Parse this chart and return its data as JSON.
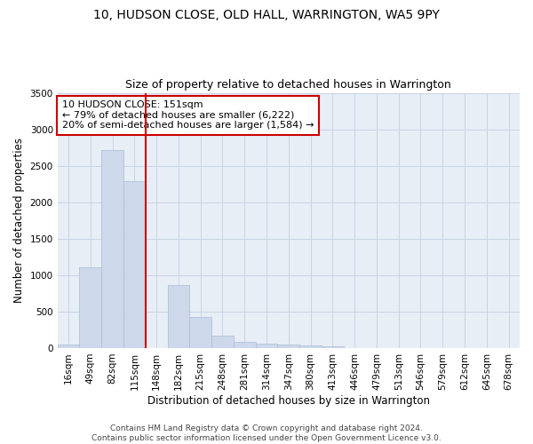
{
  "title_line1": "10, HUDSON CLOSE, OLD HALL, WARRINGTON, WA5 9PY",
  "title_line2": "Size of property relative to detached houses in Warrington",
  "xlabel": "Distribution of detached houses by size in Warrington",
  "ylabel": "Number of detached properties",
  "bar_color": "#cdd9ea",
  "bar_edge_color": "#a8bdd6",
  "grid_color": "#c8d4e4",
  "background_color": "#e8eef6",
  "categories": [
    "16sqm",
    "49sqm",
    "82sqm",
    "115sqm",
    "148sqm",
    "182sqm",
    "215sqm",
    "248sqm",
    "281sqm",
    "314sqm",
    "347sqm",
    "380sqm",
    "413sqm",
    "446sqm",
    "479sqm",
    "513sqm",
    "546sqm",
    "579sqm",
    "612sqm",
    "645sqm",
    "678sqm"
  ],
  "values": [
    50,
    1110,
    2720,
    2290,
    0,
    870,
    420,
    170,
    90,
    60,
    50,
    30,
    20,
    0,
    0,
    0,
    0,
    0,
    0,
    0,
    0
  ],
  "ylim": [
    0,
    3500
  ],
  "yticks": [
    0,
    500,
    1000,
    1500,
    2000,
    2500,
    3000,
    3500
  ],
  "vline_x": 3.5,
  "vline_color": "#cc0000",
  "annotation_text": "10 HUDSON CLOSE: 151sqm\n← 79% of detached houses are smaller (6,222)\n20% of semi-detached houses are larger (1,584) →",
  "annotation_box_color": "#ffffff",
  "annotation_box_edge": "#cc0000",
  "footer_line1": "Contains HM Land Registry data © Crown copyright and database right 2024.",
  "footer_line2": "Contains public sector information licensed under the Open Government Licence v3.0.",
  "title_fontsize": 10,
  "subtitle_fontsize": 9,
  "axis_label_fontsize": 8.5,
  "tick_fontsize": 7.5,
  "annotation_fontsize": 8,
  "footer_fontsize": 6.5
}
